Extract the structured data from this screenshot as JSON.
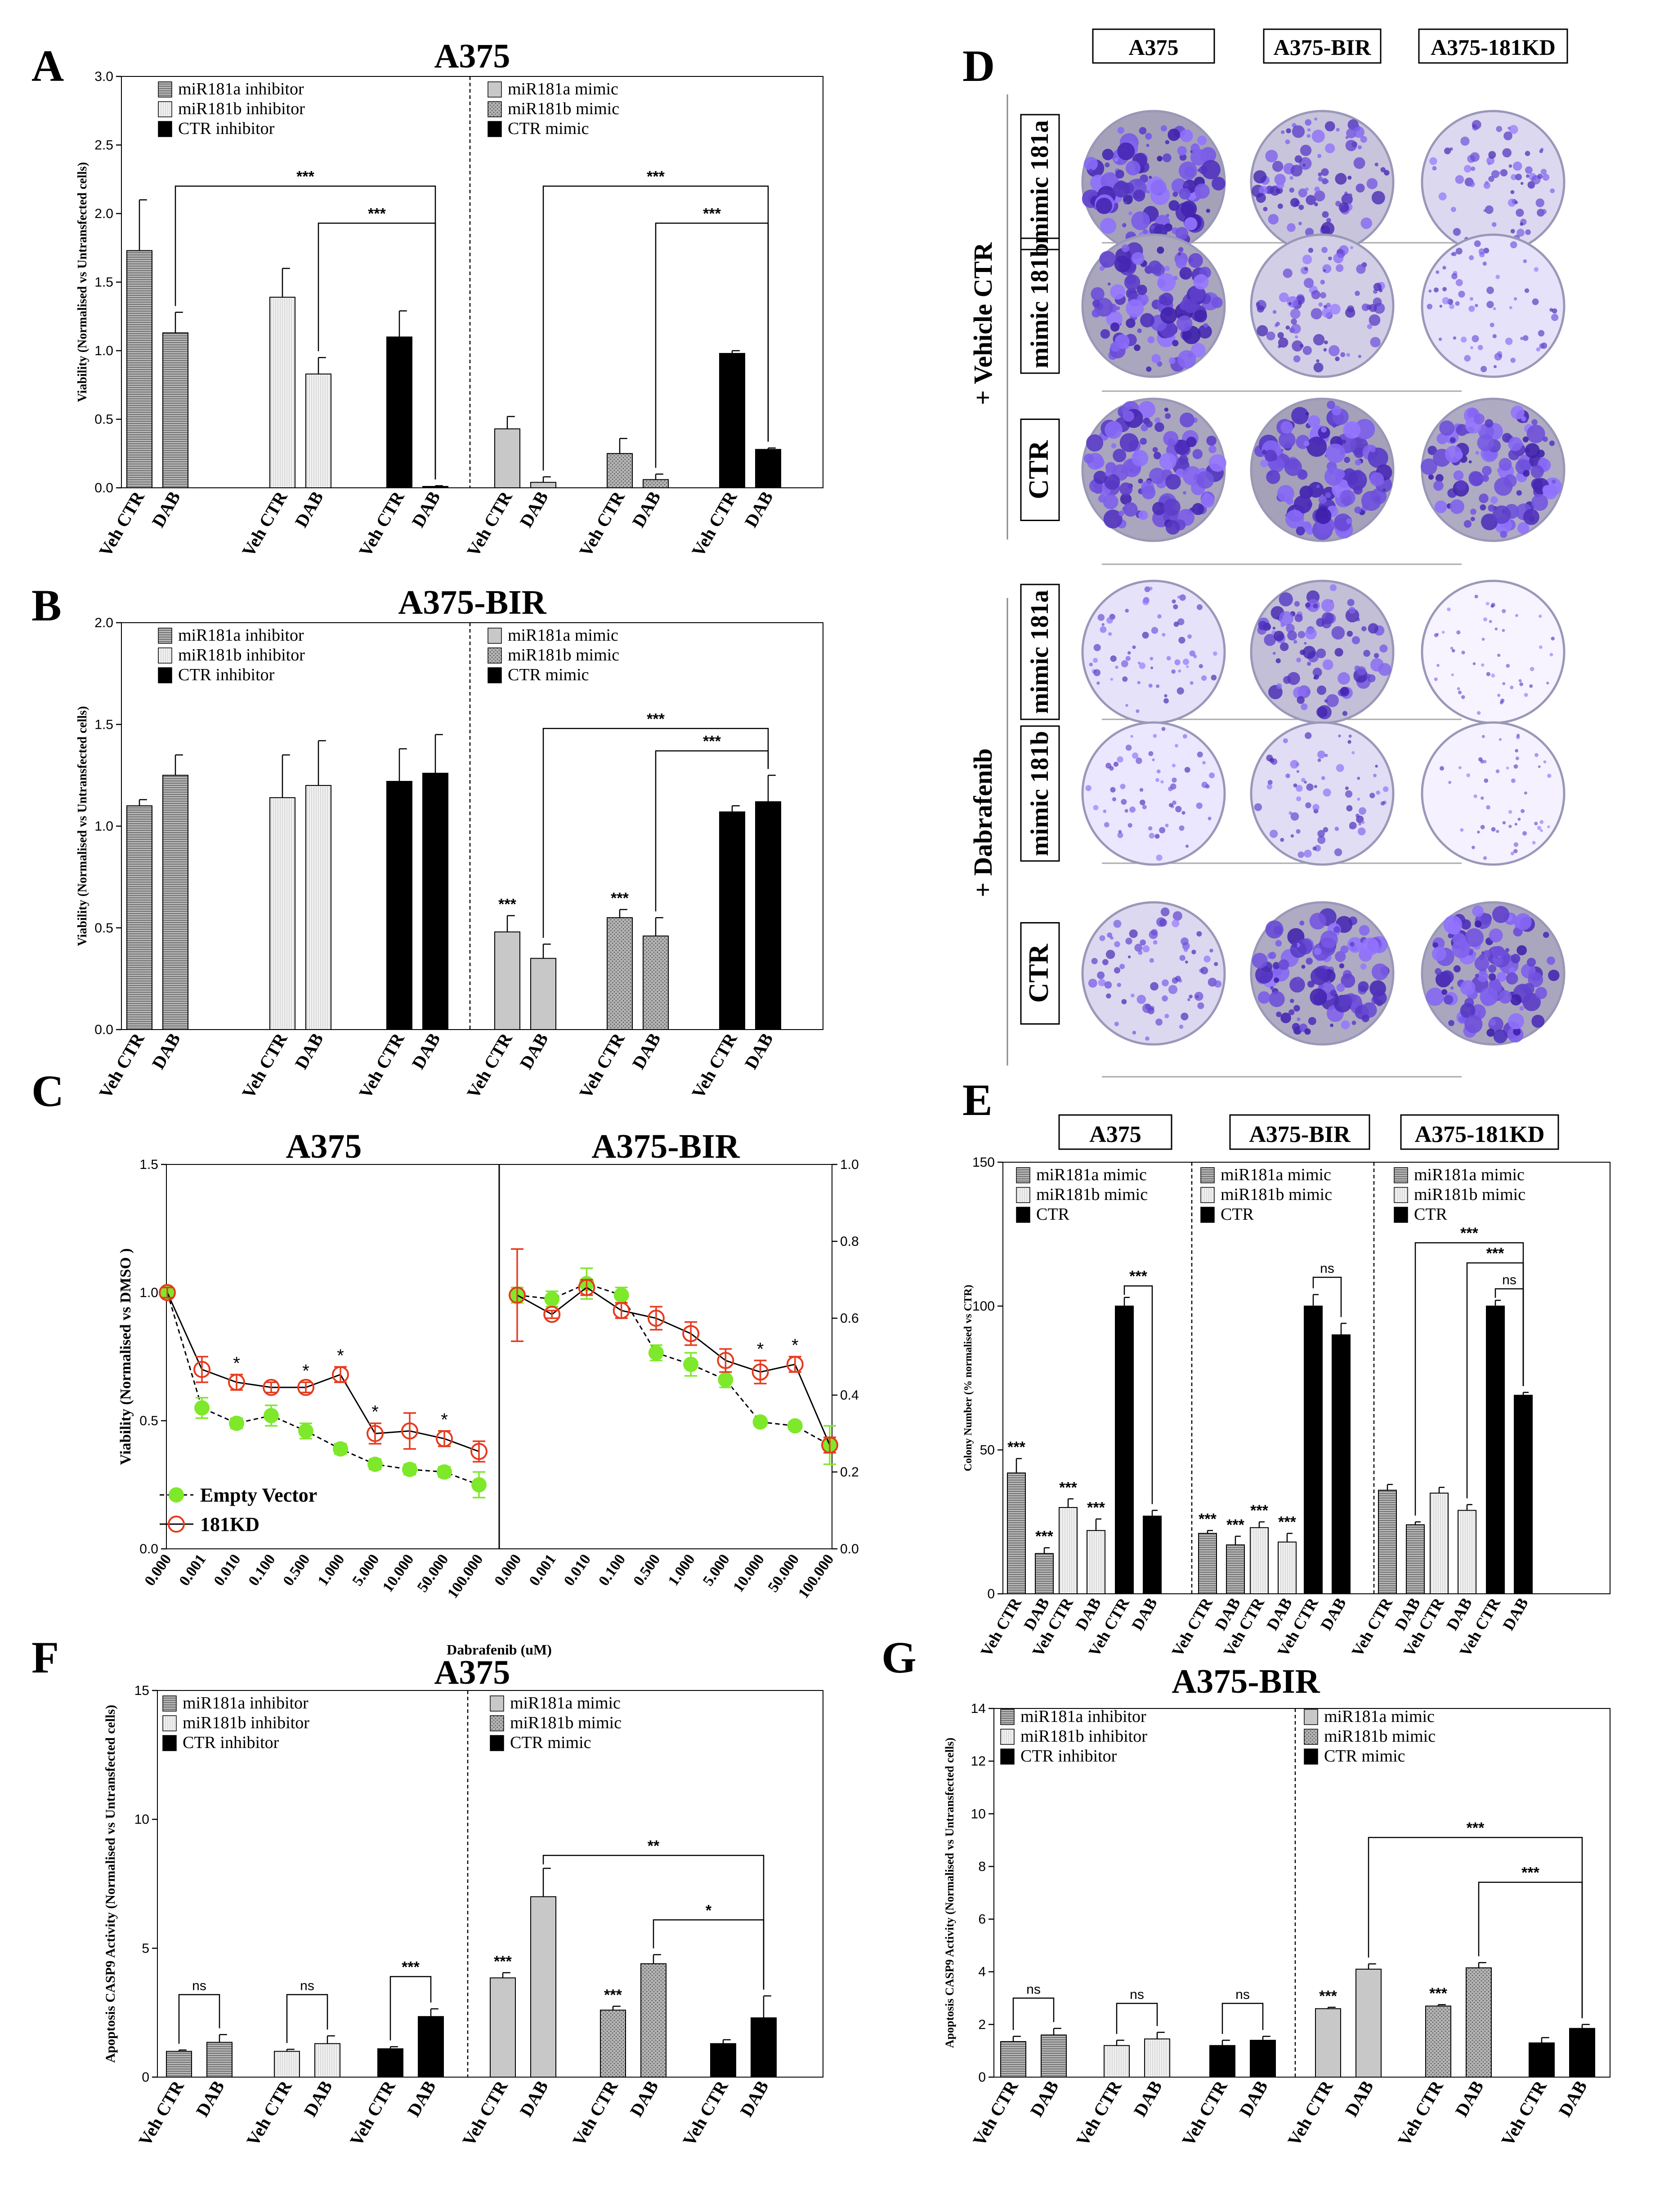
{
  "labels": {
    "A": "A",
    "B": "B",
    "C": "C",
    "D": "D",
    "E": "E",
    "F": "F",
    "G": "G"
  },
  "colors": {
    "black": "#000000",
    "grey": "#c8c8c8",
    "lightgrey": "#eeeeee",
    "hatch": "#a8a8a8",
    "green": "#7ee82a",
    "red": "#e63a1e"
  },
  "chart_data": [
    {
      "id": "A",
      "type": "bar",
      "title": "A375",
      "ylabel": "Viability (Normalised vs Untransfected cells)",
      "ylim": [
        0,
        3.0
      ],
      "yticks": [
        "0.0",
        "0.5",
        "1.0",
        "1.5",
        "2.0",
        "2.5",
        "3.0"
      ],
      "legend_left": [
        "miR181a inhibitor",
        "miR181b inhibitor",
        "CTR inhibitor"
      ],
      "legend_right": [
        "miR181a mimic",
        "miR181b mimic",
        "CTR mimic"
      ],
      "categories": [
        "Veh CTR",
        "DAB",
        "Veh CTR",
        "DAB",
        "Veh CTR",
        "DAB",
        "Veh CTR",
        "DAB",
        "Veh CTR",
        "DAB",
        "Veh CTR",
        "DAB"
      ],
      "values": [
        1.73,
        1.13,
        1.39,
        0.83,
        1.1,
        0.01,
        0.43,
        0.04,
        0.25,
        0.06,
        0.98,
        0.28
      ],
      "errors": [
        0.37,
        0.15,
        0.21,
        0.12,
        0.19,
        0.005,
        0.09,
        0.04,
        0.11,
        0.04,
        0.02,
        0.01
      ],
      "styles": [
        "hatchgrey",
        "hatchgrey",
        "lightgrey",
        "lightgrey",
        "black",
        "black",
        "grey",
        "grey",
        "dotgrey",
        "dotgrey",
        "black",
        "black"
      ],
      "brackets": [
        {
          "from": 1,
          "to": 5,
          "label": "***",
          "level": 2.2
        },
        {
          "from": 3,
          "to": 5,
          "label": "***",
          "level": 1.93
        },
        {
          "from": 7,
          "to": 11,
          "label": "***",
          "level": 2.2
        },
        {
          "from": 9,
          "to": 11,
          "label": "***",
          "level": 1.93
        }
      ],
      "stars": []
    },
    {
      "id": "B",
      "type": "bar",
      "title": "A375-BIR",
      "ylabel": "Viability (Normalised vs Untransfected cells)",
      "ylim": [
        0,
        2.0
      ],
      "yticks": [
        "0.0",
        "0.5",
        "1.0",
        "1.5",
        "2.0"
      ],
      "legend_left": [
        "miR181a inhibitor",
        "miR181b inhibitor",
        "CTR inhibitor"
      ],
      "legend_right": [
        "miR181a mimic",
        "miR181b mimic",
        "CTR mimic"
      ],
      "categories": [
        "Veh CTR",
        "DAB",
        "Veh CTR",
        "DAB",
        "Veh CTR",
        "DAB",
        "Veh CTR",
        "DAB",
        "Veh CTR",
        "DAB",
        "Veh CTR",
        "DAB"
      ],
      "values": [
        1.1,
        1.25,
        1.14,
        1.2,
        1.22,
        1.26,
        0.48,
        0.35,
        0.55,
        0.46,
        1.07,
        1.12
      ],
      "errors": [
        0.03,
        0.1,
        0.21,
        0.22,
        0.16,
        0.19,
        0.08,
        0.07,
        0.04,
        0.09,
        0.03,
        0.13
      ],
      "styles": [
        "hatchgrey",
        "hatchgrey",
        "lightgrey",
        "lightgrey",
        "black",
        "black",
        "grey",
        "grey",
        "dotgrey",
        "dotgrey",
        "black",
        "black"
      ],
      "brackets": [
        {
          "from": 7,
          "to": 11,
          "label": "***",
          "level": 1.48
        },
        {
          "from": 9,
          "to": 11,
          "label": "***",
          "level": 1.37
        }
      ],
      "stars": [
        {
          "index": 6,
          "label": "***"
        },
        {
          "index": 8,
          "label": "***"
        }
      ]
    },
    {
      "id": "C",
      "type": "line",
      "titles": [
        "A375",
        "A375-BIR"
      ],
      "ylabel": "Viability (Normalised vs DMSO )",
      "xlabel": "Dabrafenib (uM)",
      "ylim_left": [
        0,
        1.5
      ],
      "yticks_left": [
        "0.0",
        "0.5",
        "1.0",
        "1.5"
      ],
      "ylim_right": [
        0,
        1.0
      ],
      "yticks_right": [
        "0.0",
        "0.2",
        "0.4",
        "0.6",
        "0.8",
        "1.0"
      ],
      "x": [
        "0.000",
        "0.001",
        "0.010",
        "0.100",
        "0.500",
        "1.000",
        "5.000",
        "10.000",
        "50.000",
        "100.000"
      ],
      "series": [
        {
          "name": "Empty Vector",
          "left": [
            1.0,
            0.55,
            0.49,
            0.52,
            0.46,
            0.39,
            0.33,
            0.31,
            0.3,
            0.25
          ],
          "left_err": [
            0.02,
            0.04,
            0.02,
            0.04,
            0.03,
            0.02,
            0.02,
            0.02,
            0.02,
            0.05
          ],
          "right": [
            0.66,
            0.65,
            0.69,
            0.66,
            0.51,
            0.48,
            0.44,
            0.33,
            0.32,
            0.27
          ],
          "right_err": [
            0.02,
            0.02,
            0.04,
            0.02,
            0.02,
            0.03,
            0.02,
            0.01,
            0.01,
            0.05
          ]
        },
        {
          "name": "181KD",
          "left": [
            1.0,
            0.7,
            0.65,
            0.63,
            0.63,
            0.68,
            0.45,
            0.46,
            0.43,
            0.38
          ],
          "left_err": [
            0.02,
            0.05,
            0.03,
            0.02,
            0.02,
            0.03,
            0.04,
            0.07,
            0.03,
            0.04
          ],
          "right": [
            0.66,
            0.61,
            0.68,
            0.62,
            0.6,
            0.56,
            0.49,
            0.46,
            0.48,
            0.27
          ],
          "right_err": [
            0.12,
            0.01,
            0.02,
            0.02,
            0.03,
            0.03,
            0.03,
            0.03,
            0.02,
            0.02
          ]
        }
      ],
      "stars_left": [
        {
          "index": 2,
          "label": "*"
        },
        {
          "index": 4,
          "label": "*"
        },
        {
          "index": 5,
          "label": "*"
        },
        {
          "index": 6,
          "label": "*"
        },
        {
          "index": 8,
          "label": "*"
        }
      ],
      "stars_right": [
        {
          "index": 7,
          "label": "*"
        },
        {
          "index": 8,
          "label": "*"
        }
      ]
    },
    {
      "id": "E",
      "type": "bar",
      "titles": [
        "A375",
        "A375-BIR",
        "A375-181KD"
      ],
      "ylabel": "Colony Number (% normalised vs CTR)",
      "ylim": [
        0,
        150
      ],
      "yticks": [
        "0",
        "50",
        "100",
        "150"
      ],
      "legend": [
        "miR181a mimic",
        "miR181b mimic",
        "CTR"
      ],
      "categories": [
        "Veh CTR",
        "DAB",
        "Veh CTR",
        "DAB",
        "Veh CTR",
        "DAB",
        "Veh CTR",
        "DAB",
        "Veh CTR",
        "DAB",
        "Veh CTR",
        "DAB",
        "Veh CTR",
        "DAB",
        "Veh CTR",
        "DAB",
        "Veh CTR",
        "DAB"
      ],
      "values": [
        42,
        14,
        30,
        22,
        100,
        27,
        21,
        17,
        23,
        18,
        100,
        90,
        36,
        24,
        35,
        29,
        100,
        69
      ],
      "errors": [
        5,
        2,
        3,
        4,
        3,
        2,
        1,
        3,
        2,
        3,
        4,
        4,
        2,
        1,
        2,
        2,
        2,
        1
      ],
      "styles": [
        "hatchgrey",
        "hatchgrey",
        "lightgrey",
        "lightgrey",
        "black",
        "black",
        "hatchgrey",
        "hatchgrey",
        "lightgrey",
        "lightgrey",
        "black",
        "black",
        "hatchgrey",
        "hatchgrey",
        "lightgrey",
        "lightgrey",
        "black",
        "black"
      ],
      "brackets": [
        {
          "from": 4,
          "to": 5,
          "label": "***",
          "level": 107
        },
        {
          "from": 10,
          "to": 11,
          "label": "ns",
          "level": 110
        },
        {
          "from": 13,
          "to": 17,
          "label": "***",
          "level": 122
        },
        {
          "from": 15,
          "to": 17,
          "label": "***",
          "level": 115
        },
        {
          "from": 16,
          "to": 17,
          "label": "ns",
          "level": 106
        }
      ],
      "stars": [
        {
          "index": 0,
          "label": "***"
        },
        {
          "index": 1,
          "label": "***"
        },
        {
          "index": 2,
          "label": "***"
        },
        {
          "index": 3,
          "label": "***"
        },
        {
          "index": 6,
          "label": "***"
        },
        {
          "index": 7,
          "label": "***"
        },
        {
          "index": 8,
          "label": "***"
        },
        {
          "index": 9,
          "label": "***"
        }
      ]
    },
    {
      "id": "F",
      "type": "bar",
      "title": "A375",
      "ylabel": "Apoptosis CASP9 Activity (Normalised vs Untransfected cells)",
      "ylim": [
        0,
        15
      ],
      "yticks": [
        "0",
        "5",
        "10",
        "15"
      ],
      "legend_left": [
        "miR181a inhibitor",
        "miR181b inhibitor",
        "CTR inhibitor"
      ],
      "legend_right": [
        "miR181a mimic",
        "miR181b mimic",
        "CTR mimic"
      ],
      "categories": [
        "Veh CTR",
        "DAB",
        "Veh CTR",
        "DAB",
        "Veh CTR",
        "DAB",
        "Veh CTR",
        "DAB",
        "Veh CTR",
        "DAB",
        "Veh CTR",
        "DAB"
      ],
      "values": [
        1.0,
        1.35,
        1.0,
        1.3,
        1.1,
        2.35,
        3.85,
        7.0,
        2.6,
        4.4,
        1.3,
        2.3
      ],
      "errors": [
        0.05,
        0.3,
        0.08,
        0.3,
        0.08,
        0.3,
        0.2,
        1.1,
        0.15,
        0.35,
        0.15,
        0.85
      ],
      "styles": [
        "hatchgrey",
        "hatchgrey",
        "lightgrey",
        "lightgrey",
        "black",
        "black",
        "grey",
        "grey",
        "dotgrey",
        "dotgrey",
        "black",
        "black"
      ],
      "brackets": [
        {
          "from": 0,
          "to": 1,
          "label": "ns",
          "level": 3.2
        },
        {
          "from": 2,
          "to": 3,
          "label": "ns",
          "level": 3.2
        },
        {
          "from": 4,
          "to": 5,
          "label": "***",
          "level": 3.9
        },
        {
          "from": 7,
          "to": 11,
          "label": "**",
          "level": 8.6
        },
        {
          "from": 9,
          "to": 11,
          "label": "*",
          "level": 6.1
        }
      ],
      "stars": [
        {
          "index": 6,
          "label": "***"
        },
        {
          "index": 8,
          "label": "***"
        }
      ]
    },
    {
      "id": "G",
      "type": "bar",
      "title": "A375-BIR",
      "ylabel": "Apoptosis CASP9 Activity (Normalised vs Untransfected cells)",
      "ylim": [
        0,
        14
      ],
      "yticks": [
        "0",
        "2",
        "4",
        "6",
        "8",
        "10",
        "12",
        "14"
      ],
      "legend_left": [
        "miR181a inhibitor",
        "miR181b inhibitor",
        "CTR inhibitor"
      ],
      "legend_right": [
        "miR181a mimic",
        "miR181b mimic",
        "CTR mimic"
      ],
      "categories": [
        "Veh CTR",
        "DAB",
        "Veh CTR",
        "DAB",
        "Veh CTR",
        "DAB",
        "Veh CTR",
        "DAB",
        "Veh CTR",
        "DAB",
        "Veh CTR",
        "DAB"
      ],
      "values": [
        1.35,
        1.6,
        1.2,
        1.45,
        1.2,
        1.4,
        2.6,
        4.1,
        2.7,
        4.15,
        1.3,
        1.85
      ],
      "errors": [
        0.2,
        0.25,
        0.2,
        0.25,
        0.2,
        0.15,
        0.05,
        0.2,
        0.05,
        0.2,
        0.2,
        0.15
      ],
      "styles": [
        "hatchgrey",
        "hatchgrey",
        "lightgrey",
        "lightgrey",
        "black",
        "black",
        "grey",
        "grey",
        "dotgrey",
        "dotgrey",
        "black",
        "black"
      ],
      "brackets": [
        {
          "from": 0,
          "to": 1,
          "label": "ns",
          "level": 3.0
        },
        {
          "from": 2,
          "to": 3,
          "label": "ns",
          "level": 2.8
        },
        {
          "from": 4,
          "to": 5,
          "label": "ns",
          "level": 2.8
        },
        {
          "from": 7,
          "to": 11,
          "label": "***",
          "level": 9.1
        },
        {
          "from": 9,
          "to": 11,
          "label": "***",
          "level": 7.4
        }
      ],
      "stars": [
        {
          "index": 6,
          "label": "***"
        },
        {
          "index": 8,
          "label": "***"
        }
      ]
    }
  ],
  "panel_d": {
    "columns": [
      "A375",
      "A375-BIR",
      "A375-181KD"
    ],
    "rows": [
      "mimic 181a",
      "mimic 181b",
      "CTR",
      "mimic 181a",
      "mimic 181b",
      "CTR"
    ],
    "groups": [
      "+ Vehicle CTR",
      "+ Dabrafenib"
    ],
    "density": [
      [
        0.9,
        0.55,
        0.35
      ],
      [
        0.85,
        0.45,
        0.25
      ],
      [
        0.85,
        0.9,
        0.8
      ],
      [
        0.25,
        0.6,
        0.08
      ],
      [
        0.2,
        0.3,
        0.1
      ],
      [
        0.35,
        0.8,
        0.85
      ]
    ]
  }
}
